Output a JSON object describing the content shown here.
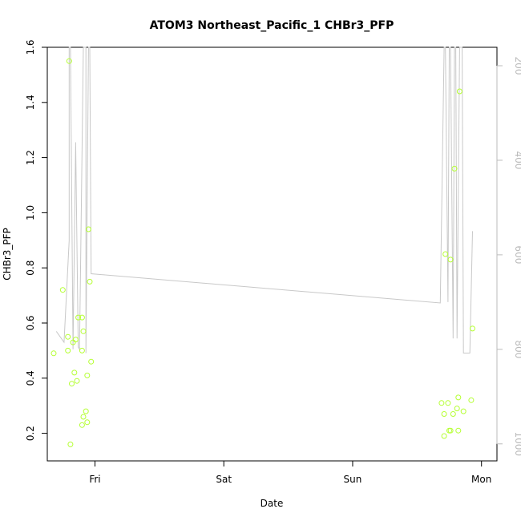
{
  "chart_data": {
    "type": "scatter",
    "title": "ATOM3 Northeast_Pacific_1 CHBr3_PFP",
    "xlabel": "Date",
    "ylabel": "CHBr3_PFP",
    "x_unit": "days",
    "x_tick_labels": [
      {
        "x": 0,
        "label": "Fri"
      },
      {
        "x": 1,
        "label": "Sat"
      },
      {
        "x": 2,
        "label": "Sun"
      },
      {
        "x": 3,
        "label": "Mon"
      }
    ],
    "xlim": [
      -0.37,
      3.12
    ],
    "ylim": [
      0.1,
      1.6
    ],
    "y_ticks": [
      0.2,
      0.4,
      0.6,
      0.8,
      1.0,
      1.2,
      1.4,
      1.6
    ],
    "y2_ticks": [
      200,
      400,
      600,
      800,
      1000
    ],
    "y2lim": [
      1036,
      161
    ],
    "grid": false,
    "colors": {
      "points": "#b5ff33",
      "line": "#c8c8c8",
      "axis": "#000000",
      "right_axis": "#bbbbbb"
    },
    "series": [
      {
        "type": "points",
        "values": [
          {
            "x": -0.32,
            "y": 0.49
          },
          {
            "x": -0.25,
            "y": 0.72
          },
          {
            "x": -0.21,
            "y": 0.55
          },
          {
            "x": -0.21,
            "y": 0.5
          },
          {
            "x": -0.2,
            "y": 1.55
          },
          {
            "x": -0.19,
            "y": 0.16
          },
          {
            "x": -0.18,
            "y": 0.38
          },
          {
            "x": -0.17,
            "y": 0.53
          },
          {
            "x": -0.16,
            "y": 0.42
          },
          {
            "x": -0.15,
            "y": 0.54
          },
          {
            "x": -0.14,
            "y": 0.39
          },
          {
            "x": -0.13,
            "y": 0.62
          },
          {
            "x": -0.1,
            "y": 0.62
          },
          {
            "x": -0.1,
            "y": 0.5
          },
          {
            "x": -0.1,
            "y": 0.23
          },
          {
            "x": -0.09,
            "y": 0.57
          },
          {
            "x": -0.09,
            "y": 0.26
          },
          {
            "x": -0.07,
            "y": 0.28
          },
          {
            "x": -0.06,
            "y": 0.41
          },
          {
            "x": -0.06,
            "y": 0.24
          },
          {
            "x": -0.05,
            "y": 0.94
          },
          {
            "x": -0.04,
            "y": 0.75
          },
          {
            "x": -0.03,
            "y": 0.46
          },
          {
            "x": 2.69,
            "y": 0.31
          },
          {
            "x": 2.71,
            "y": 0.27
          },
          {
            "x": 2.71,
            "y": 0.19
          },
          {
            "x": 2.72,
            "y": 0.85
          },
          {
            "x": 2.74,
            "y": 0.31
          },
          {
            "x": 2.75,
            "y": 0.21
          },
          {
            "x": 2.76,
            "y": 0.83
          },
          {
            "x": 2.76,
            "y": 0.21
          },
          {
            "x": 2.78,
            "y": 0.27
          },
          {
            "x": 2.79,
            "y": 1.16
          },
          {
            "x": 2.81,
            "y": 0.29
          },
          {
            "x": 2.82,
            "y": 0.33
          },
          {
            "x": 2.82,
            "y": 0.21
          },
          {
            "x": 2.83,
            "y": 1.44
          },
          {
            "x": 2.86,
            "y": 0.28
          },
          {
            "x": 2.92,
            "y": 0.32
          },
          {
            "x": 2.93,
            "y": 0.58
          }
        ]
      },
      {
        "type": "line",
        "axis": "right",
        "values": [
          {
            "x": -0.3,
            "y": 762
          },
          {
            "x": -0.24,
            "y": 785
          },
          {
            "x": -0.2,
            "y": 570
          },
          {
            "x": -0.2,
            "y": 161
          },
          {
            "x": -0.19,
            "y": 161
          },
          {
            "x": -0.17,
            "y": 800
          },
          {
            "x": -0.15,
            "y": 362
          },
          {
            "x": -0.13,
            "y": 795
          },
          {
            "x": -0.12,
            "y": 800
          },
          {
            "x": -0.09,
            "y": 161
          },
          {
            "x": -0.07,
            "y": 161
          },
          {
            "x": -0.07,
            "y": 808
          },
          {
            "x": -0.05,
            "y": 161
          },
          {
            "x": -0.04,
            "y": 161
          },
          {
            "x": -0.03,
            "y": 640
          },
          {
            "x": 2.68,
            "y": 702
          },
          {
            "x": 2.71,
            "y": 161
          },
          {
            "x": 2.72,
            "y": 161
          },
          {
            "x": 2.74,
            "y": 700
          },
          {
            "x": 2.75,
            "y": 161
          },
          {
            "x": 2.76,
            "y": 161
          },
          {
            "x": 2.78,
            "y": 777
          },
          {
            "x": 2.79,
            "y": 161
          },
          {
            "x": 2.8,
            "y": 161
          },
          {
            "x": 2.81,
            "y": 777
          },
          {
            "x": 2.83,
            "y": 161
          },
          {
            "x": 2.85,
            "y": 161
          },
          {
            "x": 2.86,
            "y": 808
          },
          {
            "x": 2.91,
            "y": 808
          },
          {
            "x": 2.93,
            "y": 550
          }
        ]
      }
    ]
  }
}
